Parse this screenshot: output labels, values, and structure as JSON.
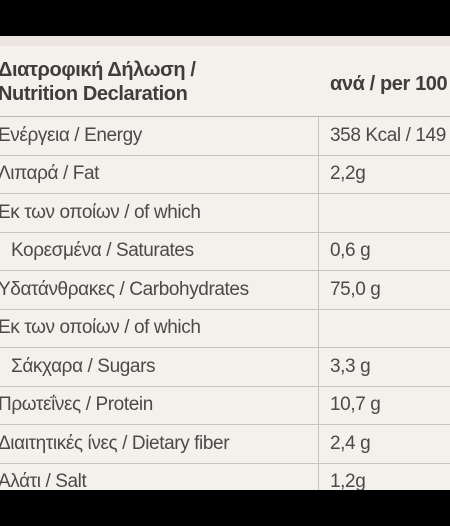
{
  "table": {
    "header": {
      "label_line1": "Διατροφική Δήλωση /",
      "label_line2": "Nutrition Declaration",
      "value": "ανά / per 100"
    },
    "rows": [
      {
        "label": "Ενέργεια / Energy",
        "value": "358 Kcal / 149"
      },
      {
        "label": "Λιπαρά / Fat",
        "value": "2,2g"
      },
      {
        "label": "Εκ των οποίων / of which",
        "value": ""
      },
      {
        "label": "Κορεσμένα / Saturates",
        "value": "0,6 g"
      },
      {
        "label": "Υδατάνθρακες / Carbohydrates",
        "value": "75,0 g"
      },
      {
        "label": "Εκ των οποίων / of which",
        "value": ""
      },
      {
        "label": "Σάκχαρα / Sugars",
        "value": "3,3 g"
      },
      {
        "label": "Πρωτεΐνες / Protein",
        "value": "10,7 g"
      },
      {
        "label": "Διαιτητικές ίνες / Dietary fiber",
        "value": "2,4 g"
      },
      {
        "label": "Αλάτι / Salt",
        "value": "1,2g"
      }
    ]
  },
  "colors": {
    "background": "#000000",
    "table_bg": "#f4f1ec",
    "text": "#4b4a48",
    "divider": "#cbc4bb"
  }
}
